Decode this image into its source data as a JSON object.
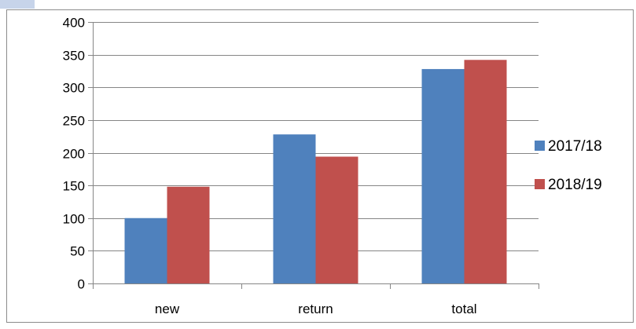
{
  "chart_data": {
    "type": "bar",
    "categories": [
      "new",
      "return",
      "total"
    ],
    "series": [
      {
        "name": "2017/18",
        "color": "#4F81BD",
        "values": [
          100,
          228,
          328
        ]
      },
      {
        "name": "2018/19",
        "color": "#C0504D",
        "values": [
          148,
          194,
          342
        ]
      }
    ],
    "ylim": [
      0,
      400
    ],
    "yticks": [
      0,
      50,
      100,
      150,
      200,
      250,
      300,
      350,
      400
    ],
    "grid": true,
    "legend": "right"
  }
}
